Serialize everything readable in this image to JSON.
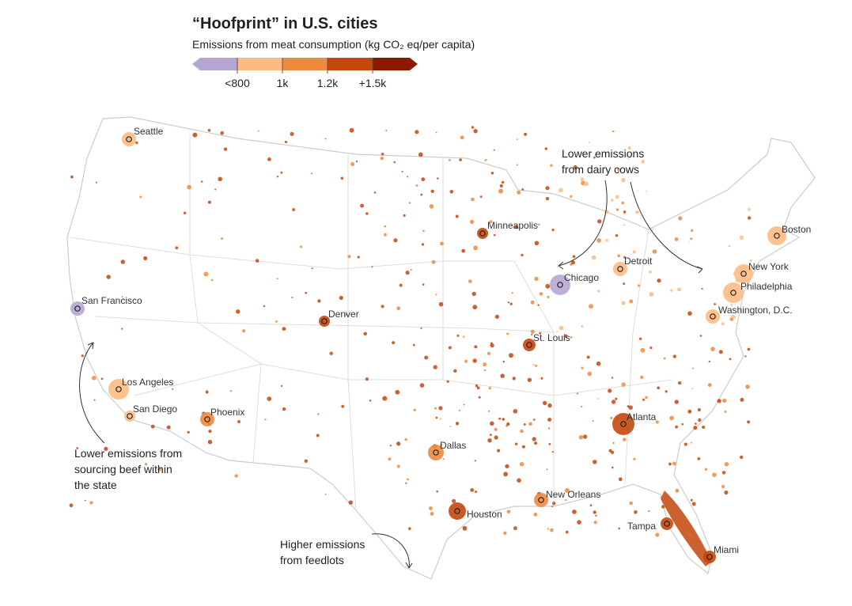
{
  "header": {
    "title": "“Hoofprint” in U.S. cities",
    "subtitle": "Emissions from meat consumption (kg CO₂ eq/per capita)"
  },
  "legend": {
    "colors": [
      "#b6a6d3",
      "#fdbb84",
      "#ee8a3e",
      "#c4470d",
      "#8c1a02"
    ],
    "labels": [
      "<800",
      "1k",
      "1.2k",
      "+1.5k"
    ]
  },
  "cities": [
    "Seattle",
    "Minneapolis",
    "Boston",
    "Detroit",
    "New York",
    "Chicago",
    "Philadelphia",
    "San Francisco",
    "Denver",
    "Washington, D.C.",
    "St. Louis",
    "Los Angeles",
    "Atlanta",
    "San Diego",
    "Phoenix",
    "Dallas",
    "New Orleans",
    "Houston",
    "Tampa",
    "Miami"
  ],
  "annotations": [
    {
      "lines": [
        "Lower emissions",
        "from dairy cows"
      ]
    },
    {
      "lines": [
        "Lower emissions from",
        "sourcing beef within",
        "the state"
      ]
    },
    {
      "lines": [
        "Higher emissions",
        "from feedlots"
      ]
    }
  ]
}
